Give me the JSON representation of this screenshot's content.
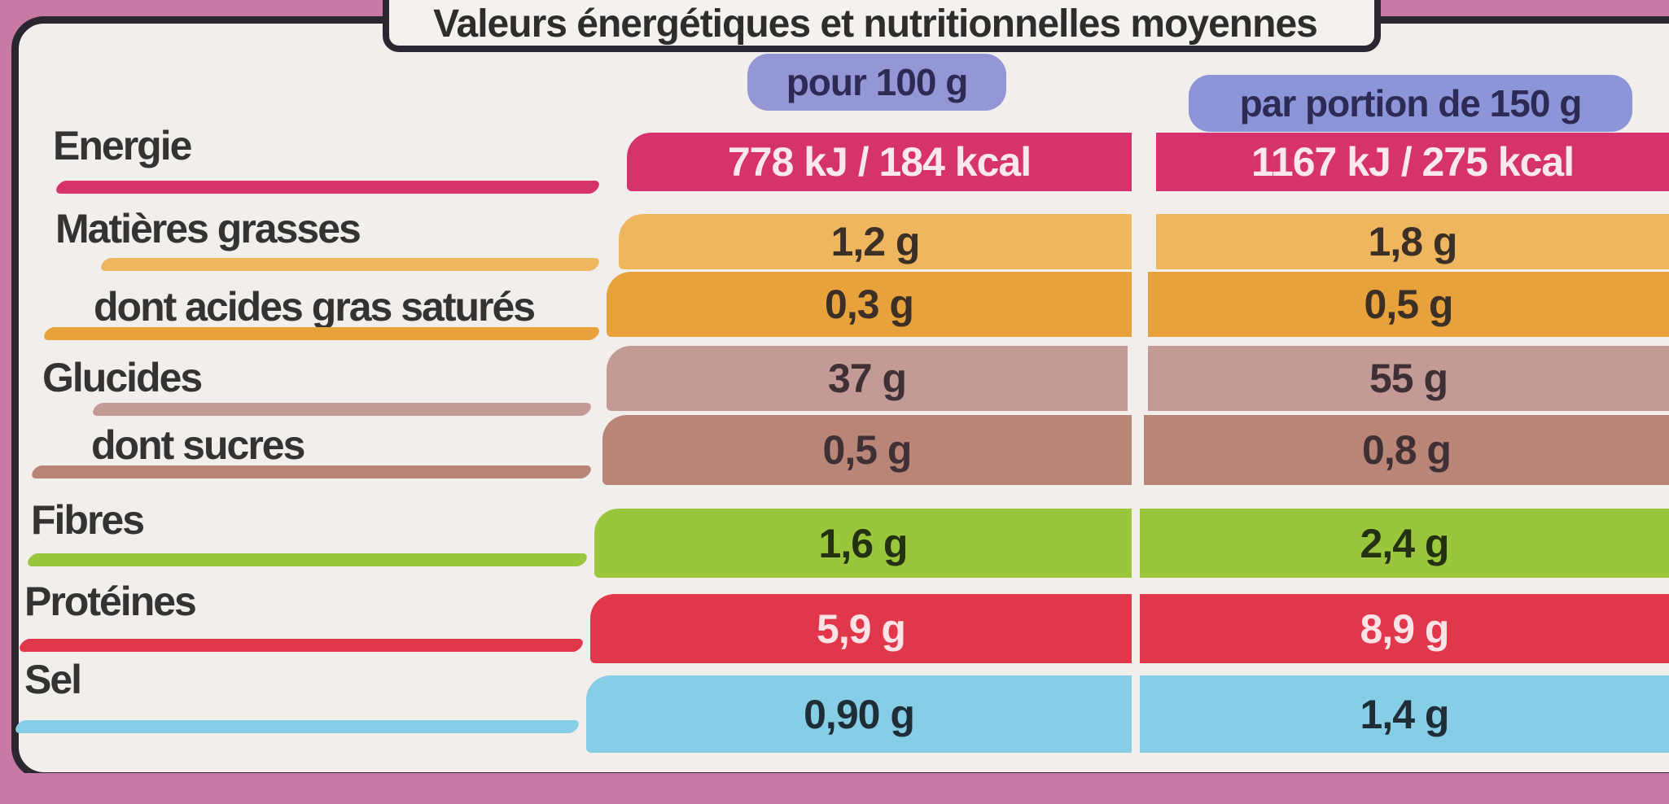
{
  "title": "Valeurs énergétiques et nutritionnelles moyennes",
  "columns": [
    "pour 100 g",
    "par portion de 150 g"
  ],
  "rows": [
    {
      "label": "Energie",
      "per100": "778 kJ / 184 kcal",
      "perPortion": "1167 kJ / 275 kcal",
      "color": "#d6336c"
    },
    {
      "label": "Matières grasses",
      "per100": "1,2 g",
      "perPortion": "1,8 g",
      "color": "#efb660"
    },
    {
      "label": "dont acides gras saturés",
      "per100": "0,3 g",
      "perPortion": "0,5 g",
      "color": "#e8a23c"
    },
    {
      "label": "Glucides",
      "per100": "37 g",
      "perPortion": "55 g",
      "color": "#c49a96"
    },
    {
      "label": "dont sucres",
      "per100": "0,5 g",
      "perPortion": "0,8 g",
      "color": "#b98577"
    },
    {
      "label": "Fibres",
      "per100": "1,6 g",
      "perPortion": "2,4 g",
      "color": "#99c63c"
    },
    {
      "label": "Protéines",
      "per100": "5,9 g",
      "perPortion": "8,9 g",
      "color": "#e0374b"
    },
    {
      "label": "Sel",
      "per100": "0,90 g",
      "perPortion": "1,4 g",
      "color": "#86cde6"
    }
  ]
}
